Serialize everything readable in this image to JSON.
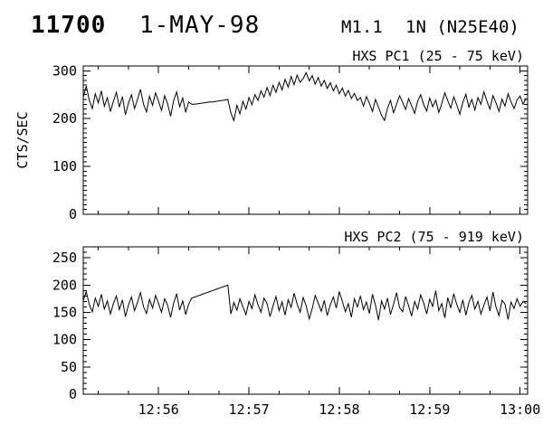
{
  "header": {
    "event_id": "11700",
    "date": "1-MAY-98",
    "flare_class": "M1.1",
    "flare_position": "1N (N25E40)"
  },
  "colors": {
    "foreground": "#000000",
    "background": "#ffffff"
  },
  "chart_data": [
    {
      "type": "line",
      "title": "HXS PC1 (25 - 75 keV)",
      "ylabel": "CTS/SEC",
      "xlabel": "",
      "legend": "none",
      "grid": false,
      "ylim": [
        0,
        310
      ],
      "y_ticks": [
        0,
        100,
        200,
        300
      ],
      "y_minor_step": 10,
      "x_start": "12:55:10",
      "x_end": "13:00:05",
      "x_tick_labels": [
        "12:56",
        "12:57",
        "12:58",
        "12:59",
        "13:00"
      ],
      "x_minor_seconds": 20,
      "show_x_tick_labels": false,
      "sample_interval_seconds": 2,
      "data_gap": {
        "from": "12:56:24",
        "to": "12:56:46",
        "note": "straight line connects points across telemetry gap"
      },
      "values": [
        245,
        268,
        238,
        221,
        252,
        233,
        258,
        226,
        244,
        215,
        236,
        255,
        224,
        246,
        208,
        232,
        250,
        221,
        240,
        261,
        230,
        214,
        247,
        228,
        254,
        236,
        217,
        248,
        231,
        205,
        238,
        256,
        225,
        243,
        213,
        235,
        230,
        230,
        231,
        232,
        233,
        234,
        235,
        235,
        236,
        237,
        238,
        239,
        240,
        212,
        196,
        228,
        210,
        236,
        220,
        244,
        229,
        250,
        238,
        258,
        245,
        265,
        248,
        270,
        255,
        276,
        260,
        282,
        266,
        288,
        271,
        291,
        276,
        284,
        296,
        279,
        290,
        272,
        286,
        268,
        280,
        263,
        275,
        258,
        270,
        252,
        264,
        247,
        259,
        242,
        253,
        238,
        244,
        226,
        246,
        232,
        215,
        240,
        224,
        207,
        196,
        222,
        238,
        212,
        230,
        248,
        234,
        219,
        242,
        227,
        211,
        236,
        250,
        229,
        216,
        243,
        225,
        239,
        213,
        231,
        254,
        237,
        222,
        246,
        228,
        209,
        234,
        251,
        224,
        240,
        218,
        244,
        230,
        256,
        236,
        220,
        248,
        233,
        215,
        241,
        226,
        252,
        235,
        221,
        239,
        247,
        230,
        243
      ]
    },
    {
      "type": "line",
      "title": "HXS PC2 (75 - 919 keV)",
      "ylabel": "",
      "xlabel": "",
      "legend": "none",
      "grid": false,
      "ylim": [
        0,
        270
      ],
      "y_ticks": [
        0,
        50,
        100,
        150,
        200,
        250
      ],
      "y_minor_step": 10,
      "x_start": "12:55:10",
      "x_end": "13:00:05",
      "x_tick_labels": [
        "12:56",
        "12:57",
        "12:58",
        "12:59",
        "13:00"
      ],
      "x_minor_seconds": 20,
      "show_x_tick_labels": true,
      "sample_interval_seconds": 2,
      "data_gap": {
        "from": "12:56:24",
        "to": "12:56:46",
        "note": "straight line connects points across telemetry gap"
      },
      "values": [
        172,
        188,
        164,
        151,
        176,
        161,
        183,
        156,
        171,
        147,
        166,
        180,
        155,
        173,
        142,
        163,
        178,
        153,
        168,
        186,
        160,
        148,
        174,
        158,
        181,
        166,
        150,
        175,
        163,
        141,
        167,
        184,
        154,
        171,
        146,
        165,
        176,
        178,
        180,
        182,
        184,
        186,
        188,
        190,
        192,
        194,
        196,
        198,
        200,
        147,
        168,
        154,
        175,
        160,
        146,
        170,
        157,
        182,
        164,
        150,
        176,
        166,
        142,
        162,
        179,
        153,
        169,
        145,
        173,
        159,
        185,
        165,
        150,
        177,
        162,
        138,
        157,
        181,
        167,
        152,
        172,
        144,
        164,
        178,
        158,
        188,
        170,
        151,
        166,
        141,
        175,
        160,
        180,
        155,
        169,
        148,
        183,
        163,
        136,
        171,
        156,
        176,
        146,
        165,
        186,
        159,
        151,
        179,
        162,
        143,
        170,
        156,
        182,
        167,
        147,
        174,
        161,
        190,
        153,
        166,
        140,
        177,
        158,
        184,
        164,
        150,
        173,
        145,
        168,
        181,
        156,
        170,
        147,
        163,
        178,
        152,
        187,
        160,
        144,
        172,
        165,
        137,
        169,
        157,
        175,
        161,
        170,
        166
      ]
    }
  ]
}
